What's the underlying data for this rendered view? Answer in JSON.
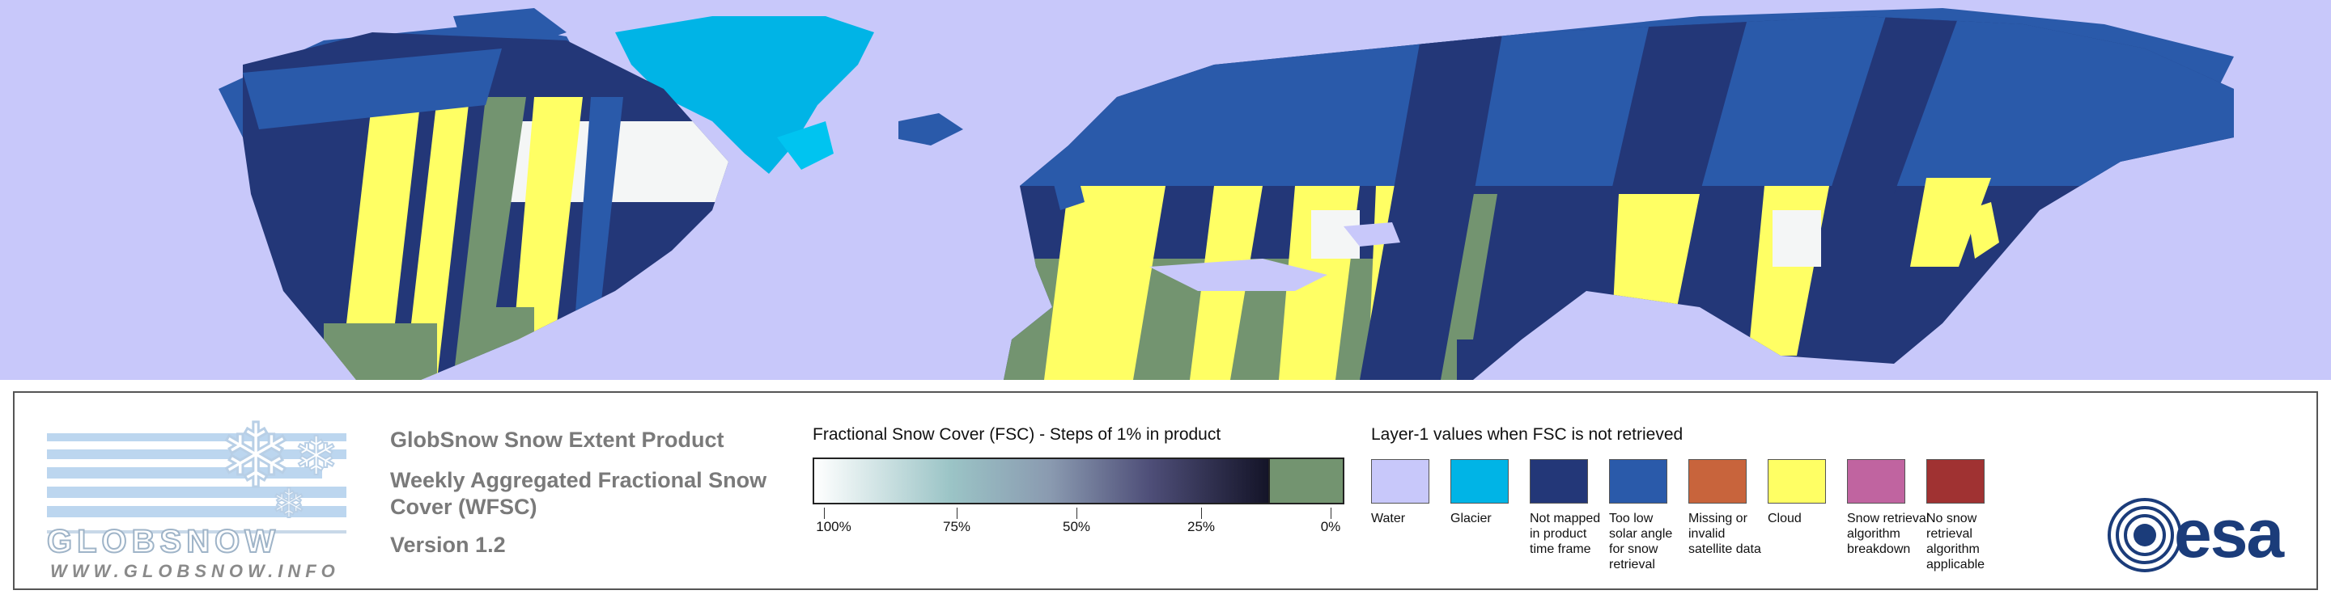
{
  "product": {
    "title": "GlobSnow Snow Extent Product",
    "subtitle": "Weekly Aggregated Fractional Snow Cover (WFSC)",
    "version": "Version 1.2"
  },
  "logo": {
    "globsnow_word": "GLOBSNOW",
    "globsnow_url": "WWW.GLOBSNOW.INFO",
    "esa_word": "esa"
  },
  "fsc_legend": {
    "title": "Fractional Snow Cover (FSC) - Steps of 1% in product",
    "ticks": [
      "100%",
      "75%",
      "50%",
      "25%",
      "0%"
    ]
  },
  "layer_legend": {
    "title": "Layer-1 values when FSC is not retrieved",
    "items": [
      {
        "label": "Water",
        "color": "#c8c8fa"
      },
      {
        "label": "Glacier",
        "color": "#00b4e6"
      },
      {
        "label": "Not mapped in product time frame",
        "color": "#233778"
      },
      {
        "label": "Too low solar angle for snow retrieval",
        "color": "#2a5aaa"
      },
      {
        "label": "Missing or invalid satellite data",
        "color": "#c8643c"
      },
      {
        "label": "Cloud",
        "color": "#ffff64"
      },
      {
        "label": "Snow retrieval algorithm breakdown",
        "color": "#c064a0"
      },
      {
        "label": "No snow retrieval algorithm applicable",
        "color": "#a03232"
      }
    ]
  },
  "map_colors": {
    "water": "#c8c8fa",
    "glacier": "#00b4e6",
    "not_mapped": "#233778",
    "low_sun": "#2a5aaa",
    "cloud": "#ffff64",
    "no_snow": "#739470",
    "snow": "#f4f6f6"
  }
}
